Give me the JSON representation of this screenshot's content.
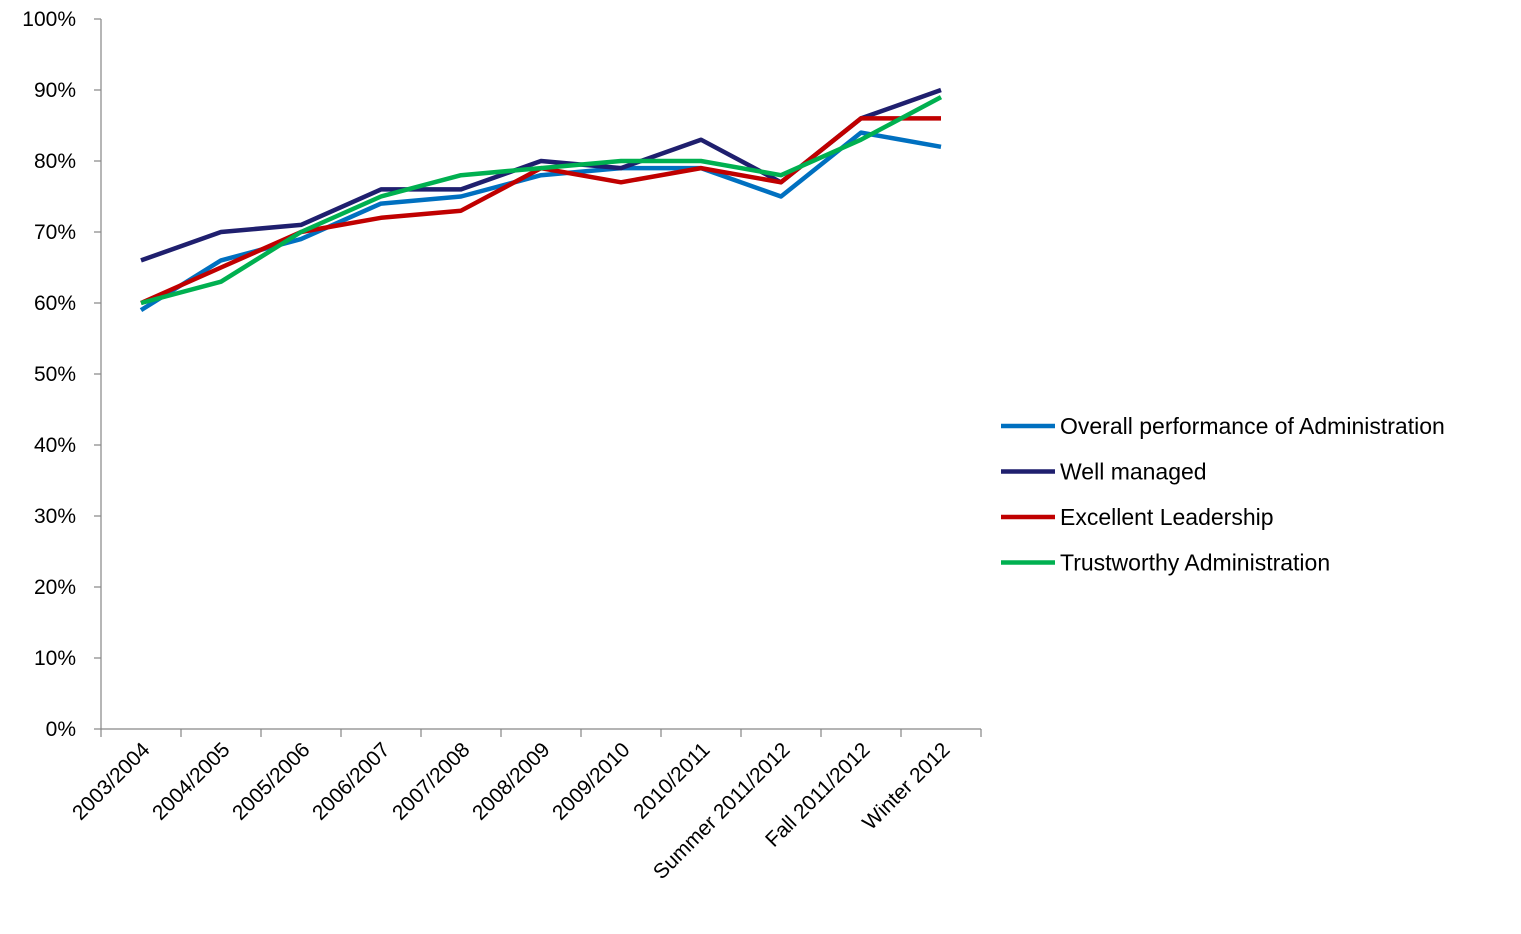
{
  "chart_data": {
    "type": "line",
    "title": "",
    "xlabel": "",
    "ylabel": "",
    "categories": [
      "2003/2004",
      "2004/2005",
      "2005/2006",
      "2006/2007",
      "2007/2008",
      "2008/2009",
      "2009/2010",
      "2010/2011",
      "Summer 2011/2012",
      "Fall 2011/2012",
      "Winter 2012"
    ],
    "ylim": [
      0,
      100
    ],
    "yticks": [
      "0%",
      "10%",
      "20%",
      "30%",
      "40%",
      "50%",
      "60%",
      "70%",
      "80%",
      "90%",
      "100%"
    ],
    "grid": false,
    "legend_position": "right",
    "series": [
      {
        "name": "Overall performance of Administration",
        "color": "#0070c0",
        "values": [
          59,
          66,
          69,
          74,
          75,
          78,
          79,
          79,
          75,
          84,
          82
        ]
      },
      {
        "name": "Well managed",
        "color": "#1f1f6e",
        "values": [
          66,
          70,
          71,
          76,
          76,
          80,
          79,
          83,
          77,
          86,
          90
        ]
      },
      {
        "name": "Excellent Leadership",
        "color": "#c00000",
        "values": [
          60,
          65,
          70,
          72,
          73,
          79,
          77,
          79,
          77,
          86,
          86
        ]
      },
      {
        "name": "Trustworthy Administration",
        "color": "#00b050",
        "values": [
          60,
          63,
          70,
          75,
          78,
          79,
          80,
          80,
          78,
          83,
          89
        ]
      }
    ]
  }
}
